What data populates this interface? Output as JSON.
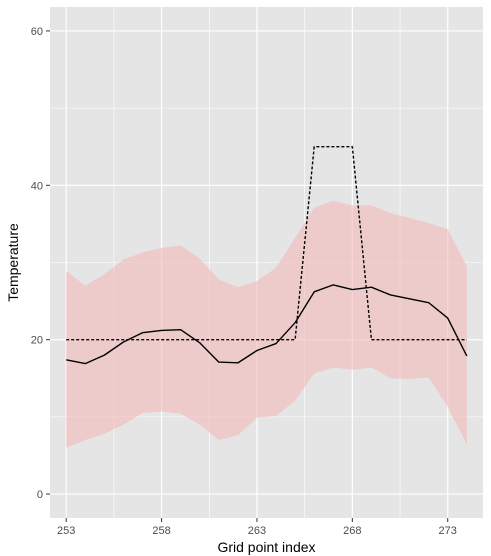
{
  "chart_data": {
    "type": "line",
    "xlabel": "Grid point index",
    "ylabel": "Temperature",
    "xlim": [
      252.15,
      274.85
    ],
    "ylim": [
      -3.1,
      63.1
    ],
    "x_ticks": [
      253,
      258,
      263,
      268,
      273
    ],
    "y_ticks": [
      0,
      20,
      40,
      60
    ],
    "grid": true,
    "background": "#e5e5e5",
    "grid_color": "#ffffff",
    "band_color": "#f4bcbc",
    "band": {
      "x": [
        253,
        254,
        255,
        256,
        257,
        258,
        259,
        260,
        261,
        262,
        263,
        264,
        265,
        266,
        267,
        268,
        269,
        270,
        271,
        272,
        273,
        274
      ],
      "upper": [
        28.9,
        27.0,
        28.5,
        30.4,
        31.3,
        31.9,
        32.2,
        30.5,
        27.8,
        26.8,
        27.6,
        29.3,
        33.2,
        37.1,
        38.0,
        37.4,
        37.4,
        36.4,
        35.8,
        35.1,
        34.3,
        29.5
      ],
      "lower": [
        6.0,
        7.0,
        7.8,
        9.0,
        10.5,
        10.7,
        10.4,
        9.0,
        7.0,
        7.6,
        9.9,
        10.1,
        12.1,
        15.6,
        16.4,
        16.1,
        16.4,
        15.0,
        14.9,
        15.1,
        11.3,
        6.4
      ]
    },
    "series": [
      {
        "style": "solid",
        "color": "#000000",
        "x": [
          253,
          254,
          255,
          256,
          257,
          258,
          259,
          260,
          261,
          262,
          263,
          264,
          265,
          266,
          267,
          268,
          269,
          270,
          271,
          272,
          273,
          274
        ],
        "values": [
          17.4,
          16.9,
          18.0,
          19.7,
          20.9,
          21.2,
          21.3,
          19.6,
          17.1,
          17.0,
          18.6,
          19.5,
          22.2,
          26.2,
          27.1,
          26.5,
          26.8,
          25.8,
          25.3,
          24.8,
          22.8,
          17.9
        ]
      },
      {
        "style": "dashed",
        "color": "#000000",
        "x": [
          253,
          265,
          266,
          268,
          269,
          274
        ],
        "values": [
          20,
          20,
          45,
          45,
          20,
          20
        ]
      }
    ]
  }
}
